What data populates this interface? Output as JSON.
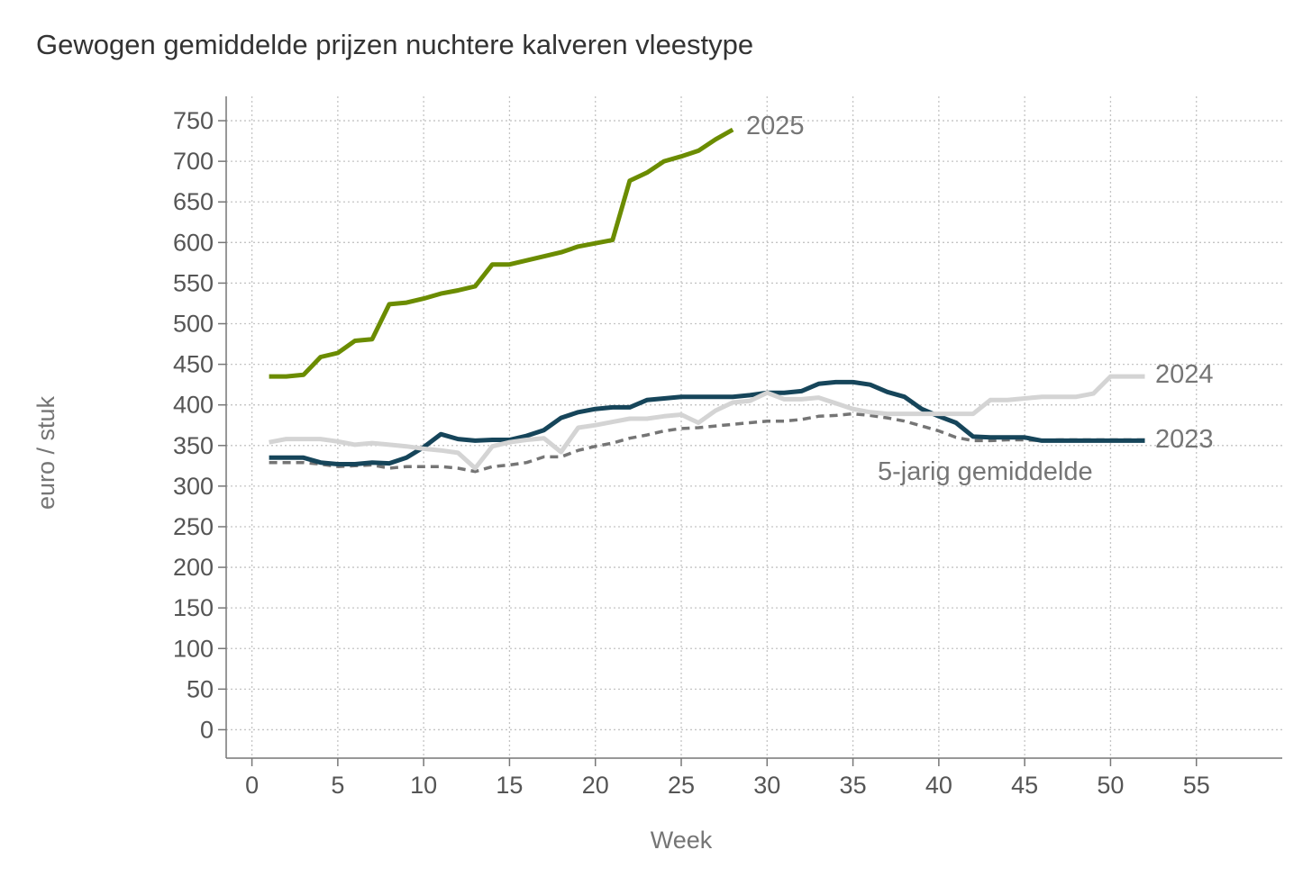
{
  "chart_data": {
    "type": "line",
    "title": "Gewogen gemiddelde prijzen nuchtere kalveren vleestype",
    "xlabel": "Week",
    "ylabel": "euro / stuk",
    "xlim": [
      -1.5,
      60
    ],
    "ylim": [
      -35,
      780
    ],
    "x_ticks": [
      0,
      5,
      10,
      15,
      20,
      25,
      30,
      35,
      40,
      45,
      50,
      55
    ],
    "y_ticks": [
      0,
      50,
      100,
      150,
      200,
      250,
      300,
      350,
      400,
      450,
      500,
      550,
      600,
      650,
      700,
      750
    ],
    "grid": true,
    "legend": "direct labels at line ends",
    "series": [
      {
        "name": "5-jarig gemiddelde",
        "color": "#757575",
        "style": "dashed",
        "x": [
          1,
          2,
          3,
          4,
          5,
          6,
          7,
          8,
          9,
          10,
          11,
          12,
          13,
          14,
          15,
          16,
          17,
          18,
          19,
          20,
          21,
          22,
          23,
          24,
          25,
          26,
          27,
          28,
          29,
          30,
          31,
          32,
          33,
          34,
          35,
          36,
          37,
          38,
          39,
          40,
          41,
          42,
          43,
          44,
          45,
          46,
          47,
          48,
          49,
          50,
          51,
          52
        ],
        "values": [
          329,
          329,
          329,
          327,
          324,
          325,
          326,
          322,
          324,
          324,
          324,
          322,
          318,
          324,
          326,
          329,
          336,
          336,
          344,
          349,
          353,
          359,
          363,
          368,
          371,
          372,
          374,
          376,
          378,
          380,
          380,
          382,
          386,
          387,
          389,
          387,
          384,
          380,
          374,
          368,
          360,
          356,
          356,
          357,
          357,
          356,
          357,
          357,
          357,
          357,
          357,
          357
        ]
      },
      {
        "name": "2023",
        "color": "#16455a",
        "style": "solid",
        "x": [
          1,
          2,
          3,
          4,
          5,
          6,
          7,
          8,
          9,
          10,
          11,
          12,
          13,
          14,
          15,
          16,
          17,
          18,
          19,
          20,
          21,
          22,
          23,
          24,
          25,
          26,
          27,
          28,
          29,
          30,
          31,
          32,
          33,
          34,
          35,
          36,
          37,
          38,
          39,
          40,
          41,
          42,
          43,
          44,
          45,
          46,
          47,
          48,
          49,
          50,
          51,
          52
        ],
        "values": [
          335,
          335,
          335,
          329,
          327,
          327,
          329,
          328,
          335,
          348,
          364,
          358,
          356,
          357,
          357,
          362,
          369,
          384,
          391,
          395,
          397,
          397,
          406,
          408,
          410,
          410,
          410,
          410,
          412,
          415,
          415,
          417,
          426,
          428,
          428,
          425,
          416,
          410,
          395,
          386,
          378,
          361,
          360,
          360,
          360,
          356,
          356,
          356,
          356,
          356,
          356,
          356
        ]
      },
      {
        "name": "2024",
        "color": "#d4d4d4",
        "style": "solid",
        "x": [
          1,
          2,
          3,
          4,
          5,
          6,
          7,
          8,
          9,
          10,
          11,
          12,
          13,
          14,
          15,
          16,
          17,
          18,
          19,
          20,
          21,
          22,
          23,
          24,
          25,
          26,
          27,
          28,
          29,
          30,
          31,
          32,
          33,
          34,
          35,
          36,
          37,
          38,
          39,
          40,
          41,
          42,
          43,
          44,
          45,
          46,
          47,
          48,
          49,
          50,
          51,
          52
        ],
        "values": [
          354,
          358,
          358,
          358,
          355,
          351,
          353,
          351,
          349,
          346,
          344,
          341,
          322,
          349,
          354,
          357,
          359,
          342,
          372,
          375,
          379,
          383,
          383,
          386,
          388,
          378,
          393,
          403,
          405,
          415,
          407,
          407,
          409,
          402,
          395,
          391,
          389,
          389,
          389,
          389,
          389,
          389,
          406,
          406,
          408,
          410,
          410,
          410,
          414,
          435,
          435,
          435
        ]
      },
      {
        "name": "2025",
        "color": "#6b8c00",
        "style": "solid",
        "x": [
          1,
          2,
          3,
          4,
          5,
          6,
          7,
          8,
          9,
          10,
          11,
          12,
          13,
          14,
          15,
          16,
          17,
          18,
          19,
          20,
          21,
          22,
          23,
          24,
          25,
          26,
          27,
          28
        ],
        "values": [
          435,
          435,
          437,
          459,
          464,
          479,
          481,
          524,
          526,
          531,
          537,
          541,
          546,
          573,
          573,
          578,
          583,
          588,
          595,
          599,
          603,
          676,
          686,
          700,
          706,
          713,
          727,
          739
        ]
      }
    ],
    "annotations": [
      "2025",
      "2024",
      "2023",
      "5-jarig gemiddelde"
    ]
  }
}
